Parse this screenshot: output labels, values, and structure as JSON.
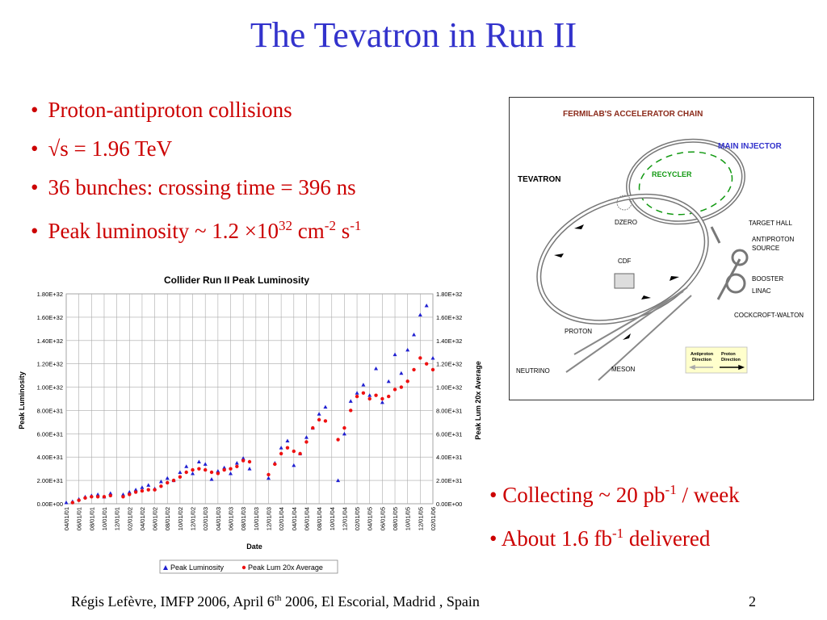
{
  "slide": {
    "title": "The Tevatron in Run II",
    "bullets": [
      {
        "text": "Proton-antiproton collisions"
      },
      {
        "pre": "√s = 1.96 TeV"
      },
      {
        "text": "36 bunches: crossing time = 396 ns"
      },
      {
        "pre": "Peak luminosity ~ 1.2 ×10",
        "sup1": "32",
        "mid": " cm",
        "sup2": "-2",
        "mid2": " s",
        "sup3": "-1"
      }
    ],
    "bullets2": [
      {
        "pre": "• Collecting ~ 20 pb",
        "sup": "-1",
        "post": " / week"
      },
      {
        "pre": "• About 1.6 fb",
        "sup": "-1",
        "post": " delivered"
      }
    ],
    "footer": {
      "pre": "Régis Lefèvre, IMFP 2006, April 6",
      "sup": "th",
      "post": " 2006, El Escorial, Madrid , Spain"
    },
    "page_number": "2"
  },
  "diagram": {
    "title": "FERMILAB'S  ACCELERATOR  CHAIN",
    "labels": {
      "main_injector": "MAIN INJECTOR",
      "recycler": "RECYCLER",
      "tevatron": "TEVATRON",
      "dzero": "DZERO",
      "target_hall": "TARGET HALL",
      "antiproton_source_1": "ANTIPROTON",
      "antiproton_source_2": "SOURCE",
      "cdf": "CDF",
      "booster": "BOOSTER",
      "linac": "LINAC",
      "cockcroft": "COCKCROFT-WALTON",
      "proton": "PROTON",
      "neutrino": "NEUTRINO",
      "meson": "MESON",
      "legend_anti_1": "Antiproton",
      "legend_anti_2": "Direction",
      "legend_proton_1": "Proton",
      "legend_proton_2": "Direction"
    },
    "colors": {
      "main_injector": "#3333cc",
      "recycler": "#119911",
      "legend_bg": "#ffffcc"
    }
  },
  "chart_data": {
    "type": "scatter",
    "title": "Collider Run II Peak Luminosity",
    "xlabel": "Date",
    "ylabel": "Peak Luminosity",
    "y2label": "Peak Lum 20x Average",
    "ylim": [
      0,
      1.8e+32
    ],
    "yticks": [
      "0.00E+00",
      "2.00E+31",
      "4.00E+31",
      "6.00E+31",
      "8.00E+31",
      "1.00E+32",
      "1.20E+32",
      "1.40E+32",
      "1.60E+32",
      "1.80E+32"
    ],
    "xticks": [
      "04/01/01",
      "06/01/01",
      "08/01/01",
      "10/01/01",
      "12/01/01",
      "02/01/02",
      "04/01/02",
      "06/01/02",
      "08/01/02",
      "10/01/02",
      "12/01/02",
      "02/01/03",
      "04/01/03",
      "06/01/03",
      "08/01/03",
      "10/01/03",
      "12/01/03",
      "02/01/04",
      "04/01/04",
      "06/01/04",
      "08/01/04",
      "10/01/04",
      "12/01/04",
      "02/01/05",
      "04/01/05",
      "06/01/05",
      "08/01/05",
      "10/01/05",
      "12/01/05",
      "02/01/06"
    ],
    "grid": true,
    "legend_position": "bottom",
    "series": [
      {
        "name": "Peak Luminosity",
        "color": "#1f1fd0",
        "marker": "triangle",
        "x": [
          0,
          0.5,
          1.0,
          1.5,
          2.0,
          2.5,
          3.0,
          3.5,
          4.5,
          5.0,
          5.5,
          6.0,
          6.5,
          7.0,
          7.5,
          8.0,
          8.5,
          9.0,
          9.5,
          10.0,
          10.5,
          11.0,
          11.5,
          12.0,
          12.5,
          13.0,
          13.5,
          14.0,
          14.5,
          16.0,
          16.5,
          17.0,
          17.5,
          18.0,
          18.5,
          19.0,
          19.5,
          20.0,
          20.5,
          21.5,
          22.0,
          22.5,
          23.0,
          23.5,
          24.0,
          24.5,
          25.0,
          25.5,
          26.0,
          26.5,
          27.0,
          27.5,
          28.0,
          28.5,
          29.0
        ],
        "y": [
          0.1,
          0.2,
          0.4,
          0.6,
          0.7,
          0.8,
          0.6,
          0.9,
          0.8,
          1.0,
          1.2,
          1.4,
          1.6,
          1.3,
          1.9,
          2.2,
          2.0,
          2.7,
          3.2,
          2.6,
          3.6,
          3.4,
          2.1,
          2.8,
          3.1,
          2.6,
          3.5,
          3.9,
          3.0,
          2.2,
          3.5,
          4.8,
          5.4,
          3.3,
          4.3,
          5.7,
          6.5,
          7.7,
          8.3,
          2.0,
          6.0,
          8.8,
          9.5,
          10.2,
          9.3,
          11.6,
          8.7,
          10.5,
          12.8,
          11.2,
          13.2,
          14.5,
          16.2,
          17.0,
          12.5
        ]
      },
      {
        "name": "Peak Lum 20x Average",
        "color": "#ee1111",
        "marker": "circle",
        "x": [
          0.5,
          1.0,
          1.5,
          2.0,
          2.5,
          3.0,
          3.5,
          4.5,
          5.0,
          5.5,
          6.0,
          6.5,
          7.0,
          7.5,
          8.0,
          8.5,
          9.0,
          9.5,
          10.0,
          10.5,
          11.0,
          11.5,
          12.0,
          12.5,
          13.0,
          13.5,
          14.0,
          14.5,
          16.0,
          16.5,
          17.0,
          17.5,
          18.0,
          18.5,
          19.0,
          19.5,
          20.0,
          20.5,
          21.5,
          22.0,
          22.5,
          23.0,
          23.5,
          24.0,
          24.5,
          25.0,
          25.5,
          26.0,
          26.5,
          27.0,
          27.5,
          28.0,
          28.5,
          29.0
        ],
        "y": [
          0.1,
          0.3,
          0.5,
          0.6,
          0.6,
          0.6,
          0.7,
          0.6,
          0.8,
          1.0,
          1.1,
          1.2,
          1.2,
          1.5,
          1.8,
          2.0,
          2.3,
          2.7,
          2.9,
          3.0,
          2.9,
          2.7,
          2.6,
          2.9,
          3.0,
          3.2,
          3.7,
          3.6,
          2.5,
          3.4,
          4.3,
          4.8,
          4.5,
          4.3,
          5.3,
          6.5,
          7.2,
          7.1,
          5.5,
          6.5,
          8.0,
          9.2,
          9.5,
          9.0,
          9.3,
          9.0,
          9.2,
          9.8,
          10.0,
          10.5,
          11.5,
          12.5,
          12.0,
          11.5
        ]
      }
    ]
  }
}
